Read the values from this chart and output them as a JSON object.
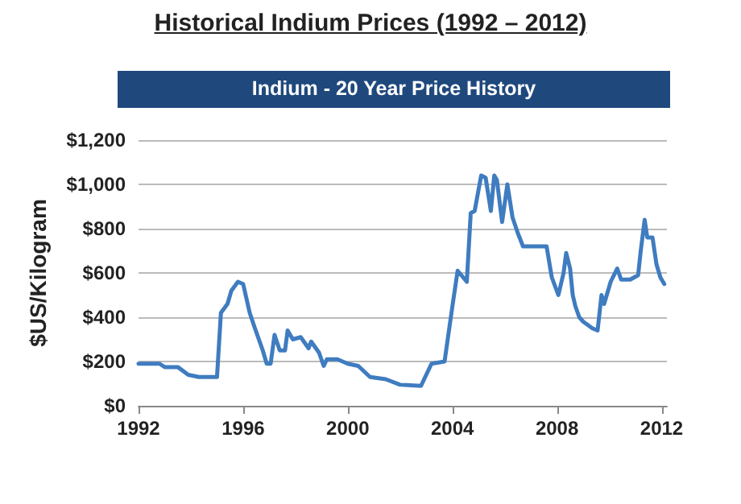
{
  "chart_data": {
    "type": "line",
    "title": "Historical Indium Prices (1992 – 2012)",
    "subtitle": "Indium - 20 Year Price History",
    "ylabel": "$US/Kilogram",
    "xlim": [
      1992,
      2012.2
    ],
    "xticks": [
      1992,
      1996,
      2000,
      2004,
      2008,
      2012
    ],
    "ylim": [
      0,
      1200
    ],
    "yticks": [
      {
        "value": 0,
        "label": "$0"
      },
      {
        "value": 200,
        "label": "$200"
      },
      {
        "value": 400,
        "label": "$400"
      },
      {
        "value": 600,
        "label": "$600"
      },
      {
        "value": 800,
        "label": "$800"
      },
      {
        "value": 1000,
        "label": "$1,000"
      },
      {
        "value": 1200,
        "label": "$1,200"
      }
    ],
    "grid": "y",
    "marker": "none",
    "line_style": "solid",
    "series": [
      {
        "color": "#3f7cc0",
        "x": [
          1992,
          1992.8,
          1993.0,
          1993.5,
          1993.9,
          1994.3,
          1995.0,
          1995.15,
          1995.4,
          1995.55,
          1995.8,
          1996.0,
          1996.25,
          1996.45,
          1996.75,
          1996.9,
          1997.05,
          1997.2,
          1997.4,
          1997.6,
          1997.7,
          1997.9,
          1998.2,
          1998.5,
          1998.6,
          1998.9,
          1999.08,
          1999.2,
          1999.6,
          2000.0,
          2000.4,
          2000.85,
          2001.45,
          2002.0,
          2002.8,
          2003.2,
          2003.7,
          2004.0,
          2004.2,
          2004.55,
          2004.7,
          2004.85,
          2005.1,
          2005.27,
          2005.47,
          2005.6,
          2005.7,
          2005.9,
          2006.1,
          2006.3,
          2006.5,
          2006.7,
          2007.6,
          2007.8,
          2008.05,
          2008.25,
          2008.35,
          2008.5,
          2008.6,
          2008.7,
          2008.85,
          2009.0,
          2009.35,
          2009.55,
          2009.7,
          2009.8,
          2010.05,
          2010.3,
          2010.45,
          2010.8,
          2011.1,
          2011.2,
          2011.35,
          2011.45,
          2011.65,
          2011.8,
          2011.95,
          2012.1
        ],
        "values": [
          190,
          190,
          175,
          175,
          140,
          130,
          130,
          420,
          460,
          520,
          560,
          550,
          420,
          350,
          250,
          190,
          190,
          320,
          250,
          250,
          340,
          300,
          310,
          260,
          290,
          240,
          180,
          210,
          210,
          190,
          180,
          130,
          120,
          95,
          90,
          190,
          200,
          450,
          610,
          560,
          870,
          880,
          1040,
          1030,
          880,
          1040,
          1020,
          830,
          1000,
          850,
          780,
          720,
          720,
          580,
          500,
          600,
          690,
          620,
          500,
          450,
          400,
          380,
          350,
          340,
          500,
          460,
          560,
          620,
          570,
          570,
          590,
          700,
          840,
          760,
          760,
          640,
          580,
          550
        ]
      }
    ]
  }
}
